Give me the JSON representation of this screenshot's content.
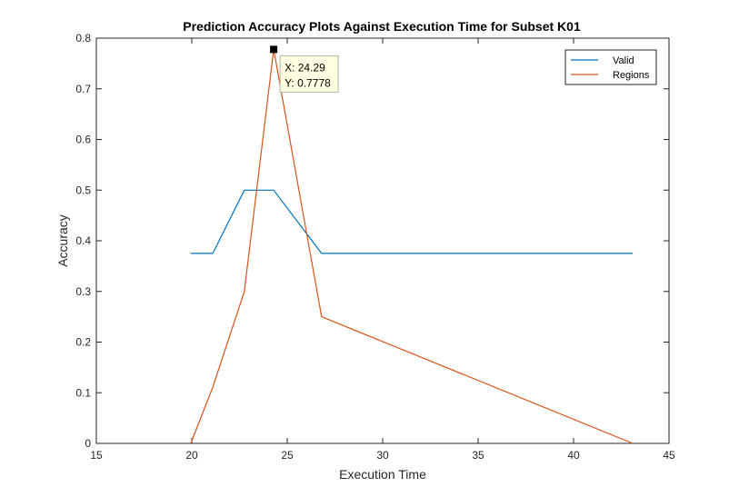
{
  "chart_data": {
    "type": "line",
    "title": "Prediction Accuracy Plots Against Execution Time for Subset K01",
    "xlabel": "Execution Time",
    "ylabel": "Accuracy",
    "xlim": [
      15,
      45
    ],
    "ylim": [
      0,
      0.8
    ],
    "xticks": [
      "15",
      "20",
      "25",
      "30",
      "35",
      "40",
      "45"
    ],
    "yticks": [
      "0",
      "0.1",
      "0.2",
      "0.3",
      "0.4",
      "0.5",
      "0.6",
      "0.7",
      "0.8"
    ],
    "grid": false,
    "legend_position": "top-right",
    "series": [
      {
        "name": "Valid",
        "color": "#0072BD",
        "x": [
          19.95,
          21.1,
          22.75,
          24.29,
          26.8,
          43.1
        ],
        "y": [
          0.375,
          0.375,
          0.5,
          0.5,
          0.375,
          0.375
        ]
      },
      {
        "name": "Regions",
        "color": "#D95319",
        "x": [
          19.95,
          21.1,
          22.75,
          24.29,
          26.8,
          43.1
        ],
        "y": [
          0.0,
          0.111,
          0.3,
          0.7778,
          0.25,
          0.0
        ]
      }
    ],
    "annotation": {
      "series": "Regions",
      "x": 24.29,
      "y": 0.7778,
      "label_x": "X: 24.29",
      "label_y": "Y: 0.7778"
    }
  }
}
